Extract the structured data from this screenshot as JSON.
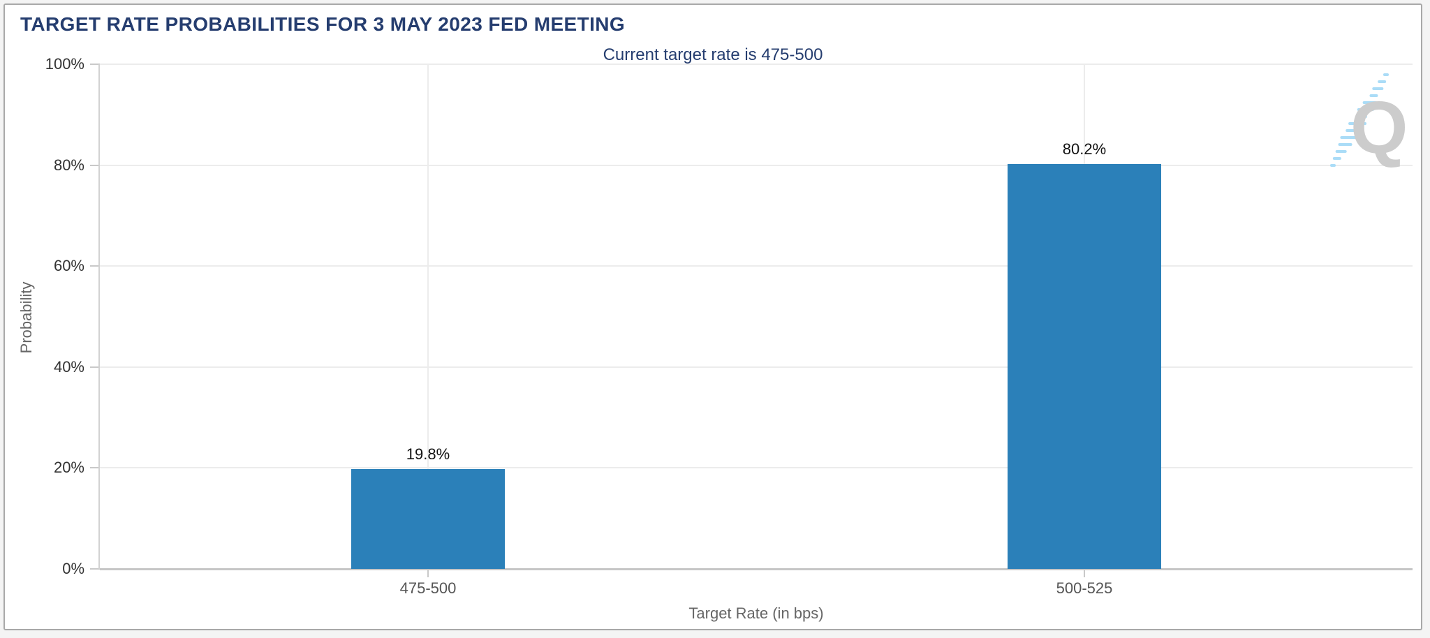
{
  "chart": {
    "menu_icon": "hamburger-menu-icon",
    "watermark_letter": "Q"
  },
  "chart_data": {
    "type": "bar",
    "title": "TARGET RATE PROBABILITIES FOR 3 MAY 2023 FED MEETING",
    "subtitle": "Current target rate is 475-500",
    "categories": [
      "475-500",
      "500-525"
    ],
    "values": [
      19.8,
      80.2
    ],
    "data_labels": [
      "19.8%",
      "80.2%"
    ],
    "xlabel": "Target Rate (in bps)",
    "ylabel": "Probability",
    "ylim": [
      0,
      100
    ],
    "ytick_values": [
      0,
      20,
      40,
      60,
      80,
      100
    ],
    "ytick_labels": [
      "0%",
      "20%",
      "40%",
      "60%",
      "80%",
      "100%"
    ],
    "grid": true,
    "legend": "none",
    "bar_color": "#2b80b9"
  },
  "colors": {
    "bar": "#2b80b9",
    "title_text": "#253d6f",
    "grid_line": "#ececec",
    "axis_line": "#c9c9c9",
    "tick_label": "#333333",
    "category_label": "#555555",
    "axis_title": "#666666",
    "data_label": "#111111",
    "panel_border": "#a8a8a8",
    "menu_icon": "#5a5a5a",
    "watermark_q": "#cccccc",
    "watermark_dash": "#aadcf7"
  }
}
